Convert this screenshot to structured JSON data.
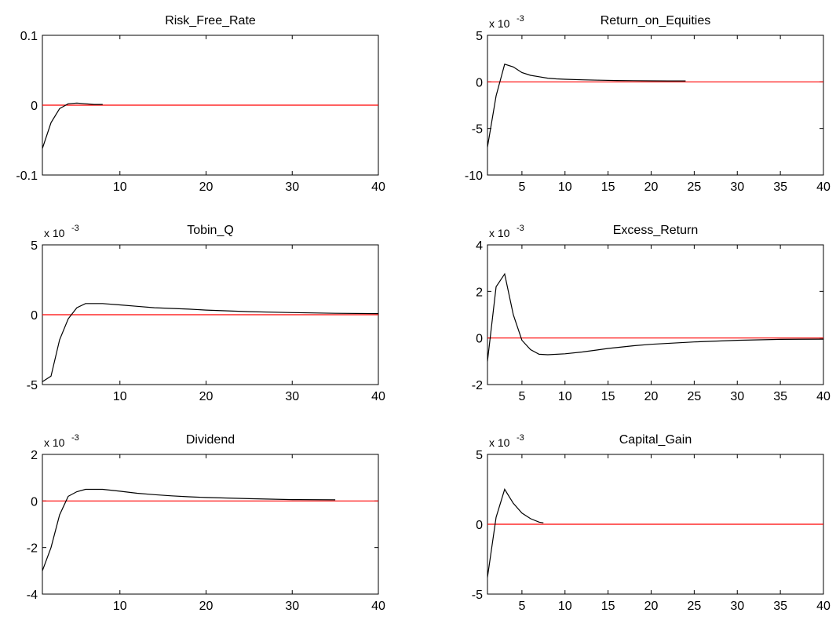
{
  "figure": {
    "background": "#ffffff",
    "axes_color": "#000000",
    "line_color": "#000000",
    "zero_line_color": "#ff0000"
  },
  "chart_data": [
    {
      "type": "line",
      "title": "Risk_Free_Rate",
      "multiplier_label": "",
      "xlim": [
        1,
        40
      ],
      "ylim": [
        -0.1,
        0.1
      ],
      "xticks": [
        10,
        20,
        30,
        40
      ],
      "xtick_labels": [
        "10",
        "20",
        "30",
        "40"
      ],
      "yticks": [
        -0.1,
        0,
        0.1
      ],
      "ytick_labels": [
        "-0.1",
        "0",
        "0.1"
      ],
      "zero_line": true,
      "series": [
        {
          "x": [
            1,
            2,
            3,
            4,
            5,
            6,
            7,
            8
          ],
          "y": [
            -0.062,
            -0.025,
            -0.005,
            0.002,
            0.003,
            0.002,
            0.001,
            0.001
          ]
        }
      ]
    },
    {
      "type": "line",
      "title": "Return_on_Equities",
      "multiplier_label": "x 10",
      "multiplier_exponent": "-3",
      "xlim": [
        1,
        40
      ],
      "ylim": [
        -10,
        5
      ],
      "xticks": [
        5,
        10,
        15,
        20,
        25,
        30,
        35,
        40
      ],
      "xtick_labels": [
        "5",
        "10",
        "15",
        "20",
        "25",
        "30",
        "35",
        "40"
      ],
      "yticks": [
        -10,
        -5,
        0,
        5
      ],
      "ytick_labels": [
        "-10",
        "-5",
        "0",
        "5"
      ],
      "zero_line": true,
      "series": [
        {
          "x": [
            1,
            2,
            3,
            4,
            5,
            6,
            7,
            8,
            9,
            10,
            12,
            14,
            16,
            18,
            20,
            22,
            24
          ],
          "y": [
            -7,
            -1.5,
            1.9,
            1.6,
            1.0,
            0.7,
            0.55,
            0.4,
            0.32,
            0.28,
            0.22,
            0.18,
            0.15,
            0.13,
            0.11,
            0.1,
            0.1
          ]
        }
      ]
    },
    {
      "type": "line",
      "title": "Tobin_Q",
      "multiplier_label": "x 10",
      "multiplier_exponent": "-3",
      "xlim": [
        1,
        40
      ],
      "ylim": [
        -5,
        5
      ],
      "xticks": [
        10,
        20,
        30,
        40
      ],
      "xtick_labels": [
        "10",
        "20",
        "30",
        "40"
      ],
      "yticks": [
        -5,
        0,
        5
      ],
      "ytick_labels": [
        "-5",
        "0",
        "5"
      ],
      "zero_line": true,
      "series": [
        {
          "x": [
            1,
            2,
            3,
            4,
            5,
            6,
            7,
            8,
            10,
            12,
            14,
            16,
            18,
            20,
            25,
            30,
            35,
            40
          ],
          "y": [
            -4.8,
            -4.4,
            -1.8,
            -0.3,
            0.5,
            0.8,
            0.8,
            0.8,
            0.7,
            0.6,
            0.5,
            0.45,
            0.4,
            0.33,
            0.22,
            0.15,
            0.1,
            0.08
          ]
        }
      ]
    },
    {
      "type": "line",
      "title": "Excess_Return",
      "multiplier_label": "x 10",
      "multiplier_exponent": "-3",
      "xlim": [
        1,
        40
      ],
      "ylim": [
        -2,
        4
      ],
      "xticks": [
        5,
        10,
        15,
        20,
        25,
        30,
        35,
        40
      ],
      "xtick_labels": [
        "5",
        "10",
        "15",
        "20",
        "25",
        "30",
        "35",
        "40"
      ],
      "yticks": [
        -2,
        0,
        2,
        4
      ],
      "ytick_labels": [
        "-2",
        "0",
        "2",
        "4"
      ],
      "zero_line": true,
      "series": [
        {
          "x": [
            1,
            2,
            3,
            4,
            5,
            6,
            7,
            8,
            10,
            12,
            15,
            18,
            20,
            25,
            30,
            35,
            40
          ],
          "y": [
            -1.0,
            2.2,
            2.75,
            1.0,
            -0.1,
            -0.5,
            -0.7,
            -0.72,
            -0.68,
            -0.6,
            -0.45,
            -0.33,
            -0.27,
            -0.17,
            -0.1,
            -0.06,
            -0.05
          ]
        }
      ]
    },
    {
      "type": "line",
      "title": "Dividend",
      "multiplier_label": "x 10",
      "multiplier_exponent": "-3",
      "xlim": [
        1,
        40
      ],
      "ylim": [
        -4,
        2
      ],
      "xticks": [
        10,
        20,
        30,
        40
      ],
      "xtick_labels": [
        "10",
        "20",
        "30",
        "40"
      ],
      "yticks": [
        -4,
        -2,
        0,
        2
      ],
      "ytick_labels": [
        "-4",
        "-2",
        "0",
        "2"
      ],
      "zero_line": true,
      "series": [
        {
          "x": [
            1,
            2,
            3,
            4,
            5,
            6,
            7,
            8,
            10,
            12,
            14,
            16,
            18,
            20,
            25,
            30,
            35
          ],
          "y": [
            -3.0,
            -2.0,
            -0.6,
            0.2,
            0.4,
            0.5,
            0.5,
            0.5,
            0.42,
            0.33,
            0.27,
            0.22,
            0.18,
            0.15,
            0.1,
            0.06,
            0.05
          ]
        }
      ]
    },
    {
      "type": "line",
      "title": "Capital_Gain",
      "multiplier_label": "x 10",
      "multiplier_exponent": "-3",
      "xlim": [
        1,
        40
      ],
      "ylim": [
        -5,
        5
      ],
      "xticks": [
        5,
        10,
        15,
        20,
        25,
        30,
        35,
        40
      ],
      "xtick_labels": [
        "5",
        "10",
        "15",
        "20",
        "25",
        "30",
        "35",
        "40"
      ],
      "yticks": [
        -5,
        0,
        5
      ],
      "ytick_labels": [
        "-5",
        "0",
        "5"
      ],
      "zero_line": true,
      "series": [
        {
          "x": [
            1,
            2,
            3,
            4,
            5,
            6,
            7,
            7.5
          ],
          "y": [
            -3.8,
            0.5,
            2.5,
            1.5,
            0.8,
            0.4,
            0.15,
            0.1
          ]
        }
      ]
    }
  ]
}
